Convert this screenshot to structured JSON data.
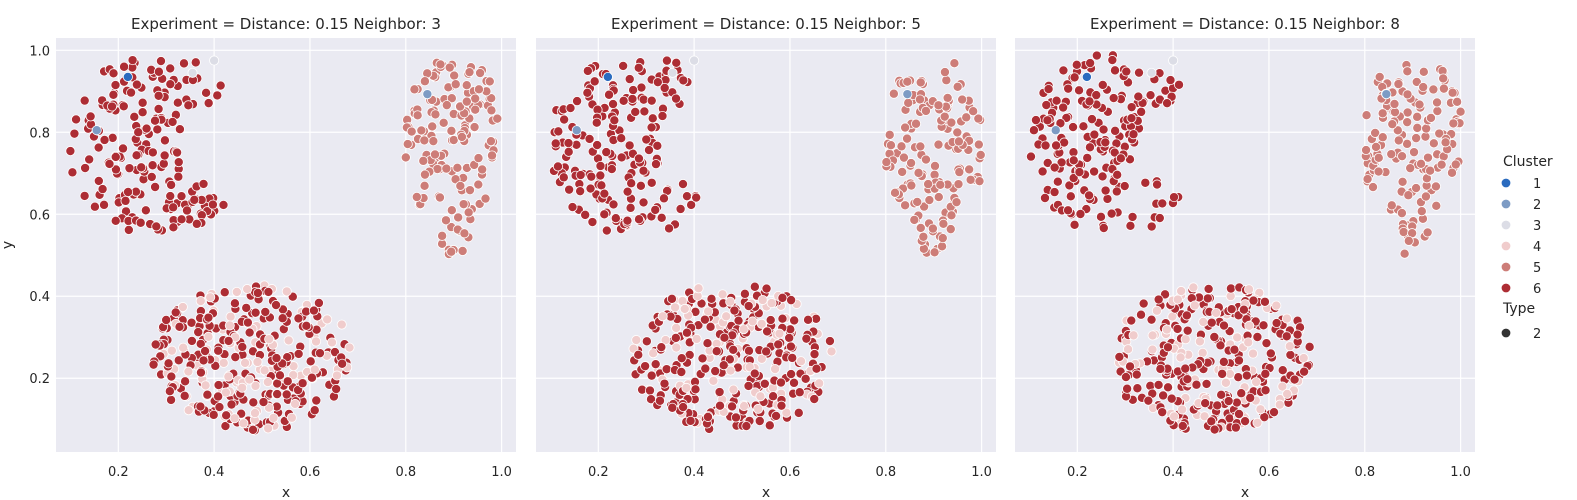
{
  "chart_data": {
    "type": "scatter",
    "xlabel": "x",
    "ylabel": "y",
    "xlim": [
      0.07,
      1.03
    ],
    "ylim": [
      0.02,
      1.03
    ],
    "xticks": [
      "0.2",
      "0.4",
      "0.6",
      "0.8",
      "1.0"
    ],
    "yticks": [
      "0.2",
      "0.4",
      "0.6",
      "0.8",
      "1.0"
    ],
    "grid": true,
    "legend_placement": "right",
    "legend": {
      "cluster_title": "Cluster",
      "clusters": [
        {
          "label": "1",
          "color": "#2a6bbf"
        },
        {
          "label": "2",
          "color": "#7d9bc4"
        },
        {
          "label": "3",
          "color": "#dcdde6"
        },
        {
          "label": "4",
          "color": "#f0cccc"
        },
        {
          "label": "5",
          "color": "#cd7d78"
        },
        {
          "label": "6",
          "color": "#ad2d34"
        }
      ],
      "type_title": "Type",
      "types": [
        {
          "label": "2",
          "color": "#333333"
        }
      ]
    },
    "background_color": "#eaeaf2",
    "panels": [
      {
        "title": "Experiment = Distance: 0.15 Neighbor: 3"
      },
      {
        "title": "Experiment = Distance: 0.15 Neighbor: 5"
      },
      {
        "title": "Experiment = Distance: 0.15 Neighbor: 8"
      }
    ],
    "clusters_shape": {
      "top_left_blob": {
        "x_range": [
          0.1,
          0.43
        ],
        "y_range": [
          0.56,
          0.99
        ],
        "main_cluster": "6"
      },
      "top_right_blob": {
        "x_range": [
          0.8,
          1.0
        ],
        "y_range": [
          0.5,
          0.97
        ],
        "main_cluster": "5"
      },
      "bottom_blob": {
        "x_range": [
          0.27,
          0.69
        ],
        "y_range": [
          0.07,
          0.44
        ],
        "clusters": [
          "6",
          "4"
        ]
      }
    },
    "special_points": [
      {
        "x": 0.22,
        "y": 0.935,
        "cluster": "1"
      },
      {
        "x": 0.155,
        "y": 0.805,
        "cluster": "2"
      },
      {
        "x": 0.845,
        "y": 0.893,
        "cluster": "2"
      },
      {
        "x": 0.355,
        "y": 0.945,
        "cluster": "3"
      },
      {
        "x": 0.4,
        "y": 0.975,
        "cluster": "3"
      }
    ]
  }
}
